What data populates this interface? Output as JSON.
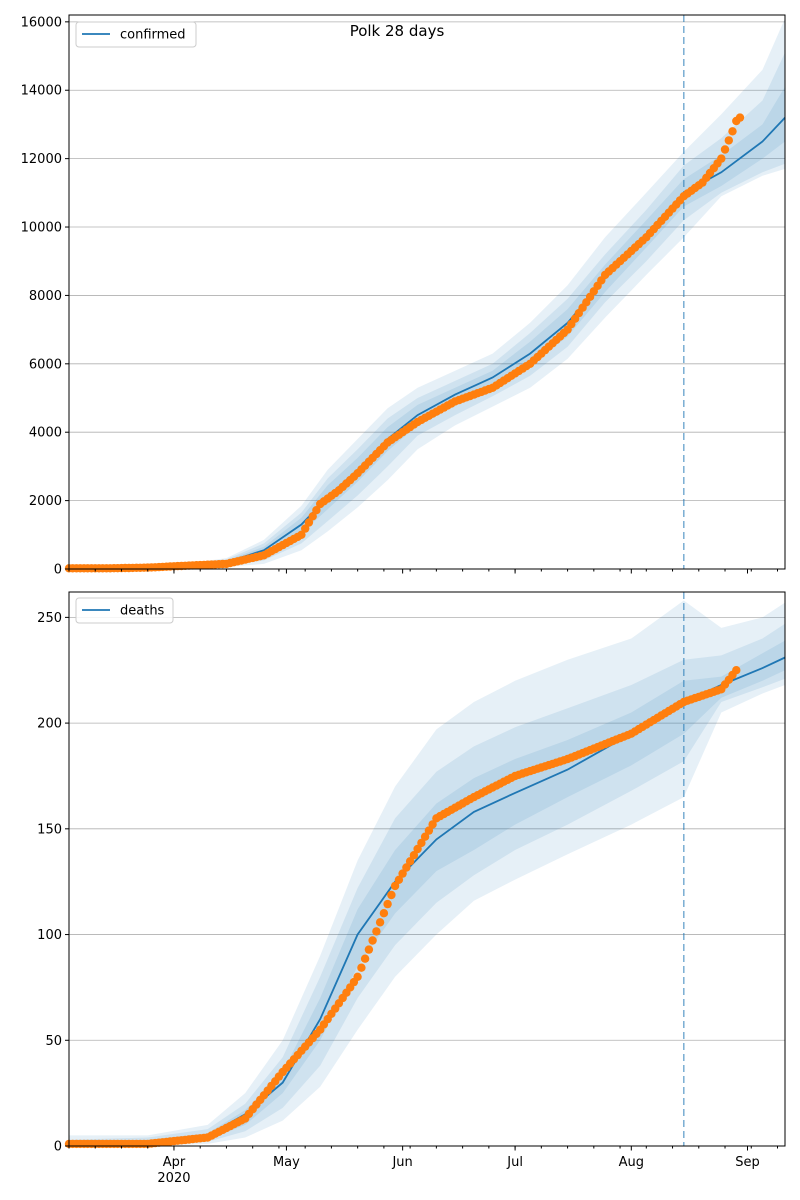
{
  "chart_data": [
    {
      "type": "line",
      "title": "Polk 28 days",
      "xlabel": "",
      "ylabel": "",
      "x_ticks": [
        "Apr\n2020",
        "May",
        "Jun",
        "Jul",
        "Aug",
        "Sep"
      ],
      "x_range": [
        "2020-03-04",
        "2020-09-11"
      ],
      "forecast_start": "2020-08-15",
      "ylim": [
        0,
        16200
      ],
      "y_ticks": [
        0,
        2000,
        4000,
        6000,
        8000,
        10000,
        12000,
        14000,
        16000
      ],
      "grid": "horizontal",
      "legend": {
        "position": "top-left",
        "entries": [
          "confirmed"
        ]
      },
      "series": [
        {
          "name": "confirmed",
          "kind": "model-line",
          "color": "#1f77b4",
          "x": [
            "2020-03-04",
            "2020-03-15",
            "2020-03-25",
            "2020-04-05",
            "2020-04-15",
            "2020-04-25",
            "2020-05-05",
            "2020-05-12",
            "2020-05-20",
            "2020-05-28",
            "2020-06-05",
            "2020-06-15",
            "2020-06-25",
            "2020-07-05",
            "2020-07-15",
            "2020-07-25",
            "2020-08-05",
            "2020-08-15",
            "2020-08-25",
            "2020-09-05",
            "2020-09-11"
          ],
          "y": [
            0,
            10,
            30,
            100,
            200,
            550,
            1300,
            2100,
            2900,
            3800,
            4500,
            5100,
            5600,
            6300,
            7200,
            8500,
            9800,
            11000,
            11600,
            12500,
            13200
          ]
        },
        {
          "name": "observed",
          "kind": "points",
          "color": "#ff7f0e",
          "x": [
            "2020-03-04",
            "2020-03-15",
            "2020-03-25",
            "2020-04-05",
            "2020-04-15",
            "2020-04-25",
            "2020-05-05",
            "2020-05-10",
            "2020-05-15",
            "2020-05-20",
            "2020-05-28",
            "2020-06-05",
            "2020-06-15",
            "2020-06-25",
            "2020-07-05",
            "2020-07-15",
            "2020-07-25",
            "2020-08-05",
            "2020-08-15",
            "2020-08-20",
            "2020-08-25",
            "2020-08-28",
            "2020-08-29",
            "2020-08-30"
          ],
          "y": [
            20,
            20,
            40,
            100,
            150,
            400,
            1000,
            1900,
            2300,
            2800,
            3700,
            4300,
            4900,
            5300,
            6000,
            7000,
            8600,
            9700,
            10900,
            11300,
            12000,
            12800,
            13100,
            13200
          ]
        }
      ],
      "bands_upper": [
        [
          0,
          30,
          70,
          170,
          320,
          850,
          1850,
          2900,
          3800,
          4700,
          5300,
          5800,
          6300,
          7200,
          8300,
          9700,
          11000,
          12200,
          13300,
          14600,
          16100
        ],
        [
          0,
          25,
          55,
          150,
          280,
          750,
          1650,
          2650,
          3500,
          4400,
          5000,
          5500,
          6000,
          6900,
          7900,
          9200,
          10500,
          11800,
          12600,
          13700,
          15100
        ],
        [
          0,
          20,
          45,
          130,
          250,
          650,
          1500,
          2450,
          3250,
          4150,
          4800,
          5300,
          5800,
          6650,
          7600,
          8900,
          10200,
          11400,
          12100,
          13000,
          14100
        ]
      ],
      "bands_lower": [
        [
          0,
          5,
          20,
          70,
          140,
          400,
          1050,
          1750,
          2550,
          3450,
          4200,
          4850,
          5350,
          5950,
          6800,
          8100,
          9400,
          10600,
          11200,
          12000,
          12500
        ],
        [
          0,
          2,
          10,
          40,
          100,
          250,
          750,
          1400,
          2150,
          3000,
          3900,
          4500,
          5050,
          5650,
          6500,
          7800,
          9000,
          10200,
          11000,
          11600,
          11850
        ],
        [
          0,
          0,
          0,
          20,
          60,
          150,
          550,
          1100,
          1800,
          2600,
          3500,
          4200,
          4750,
          5300,
          6150,
          7350,
          8600,
          9700,
          10900,
          11500,
          11700
        ]
      ]
    },
    {
      "type": "line",
      "title": "",
      "xlabel": "",
      "ylabel": "",
      "x_ticks": [
        "Apr\n2020",
        "May",
        "Jun",
        "Jul",
        "Aug",
        "Sep"
      ],
      "x_range": [
        "2020-03-04",
        "2020-09-11"
      ],
      "forecast_start": "2020-08-15",
      "ylim": [
        0,
        262
      ],
      "y_ticks": [
        0,
        50,
        100,
        150,
        200,
        250
      ],
      "grid": "horizontal",
      "legend": {
        "position": "top-left",
        "entries": [
          "deaths"
        ]
      },
      "series": [
        {
          "name": "deaths",
          "kind": "model-line",
          "color": "#1f77b4",
          "x": [
            "2020-03-04",
            "2020-03-25",
            "2020-04-10",
            "2020-04-20",
            "2020-04-30",
            "2020-05-10",
            "2020-05-20",
            "2020-05-30",
            "2020-06-10",
            "2020-06-20",
            "2020-07-01",
            "2020-07-15",
            "2020-08-01",
            "2020-08-15",
            "2020-08-25",
            "2020-09-05",
            "2020-09-11"
          ],
          "y": [
            1,
            2,
            5,
            15,
            30,
            60,
            100,
            125,
            145,
            158,
            167,
            178,
            195,
            210,
            218,
            226,
            231
          ]
        },
        {
          "name": "observed",
          "kind": "points",
          "color": "#ff7f0e",
          "x": [
            "2020-03-04",
            "2020-03-25",
            "2020-04-10",
            "2020-04-20",
            "2020-04-30",
            "2020-05-10",
            "2020-05-20",
            "2020-05-30",
            "2020-06-10",
            "2020-06-20",
            "2020-07-01",
            "2020-07-15",
            "2020-08-01",
            "2020-08-15",
            "2020-08-25",
            "2020-08-29"
          ],
          "y": [
            1,
            1,
            4,
            13,
            35,
            55,
            80,
            123,
            155,
            165,
            175,
            183,
            195,
            210,
            216,
            225
          ]
        }
      ],
      "bands_upper": [
        [
          5,
          5,
          10,
          25,
          50,
          90,
          135,
          170,
          197,
          210,
          220,
          230,
          240,
          258,
          245,
          250,
          257
        ],
        [
          3,
          4,
          8,
          20,
          42,
          80,
          122,
          155,
          177,
          189,
          198,
          207,
          218,
          230,
          232,
          240,
          247
        ],
        [
          2,
          3,
          6,
          17,
          35,
          70,
          112,
          140,
          162,
          174,
          183,
          192,
          205,
          220,
          222,
          233,
          239
        ]
      ],
      "bands_lower": [
        [
          0,
          1,
          3,
          10,
          25,
          50,
          85,
          110,
          130,
          140,
          152,
          165,
          180,
          195,
          212,
          220,
          225
        ],
        [
          0,
          0,
          2,
          7,
          18,
          38,
          70,
          95,
          115,
          128,
          140,
          152,
          168,
          182,
          210,
          217,
          221
        ],
        [
          0,
          0,
          1,
          4,
          12,
          28,
          55,
          80,
          100,
          116,
          126,
          138,
          152,
          165,
          205,
          214,
          218
        ]
      ]
    }
  ]
}
